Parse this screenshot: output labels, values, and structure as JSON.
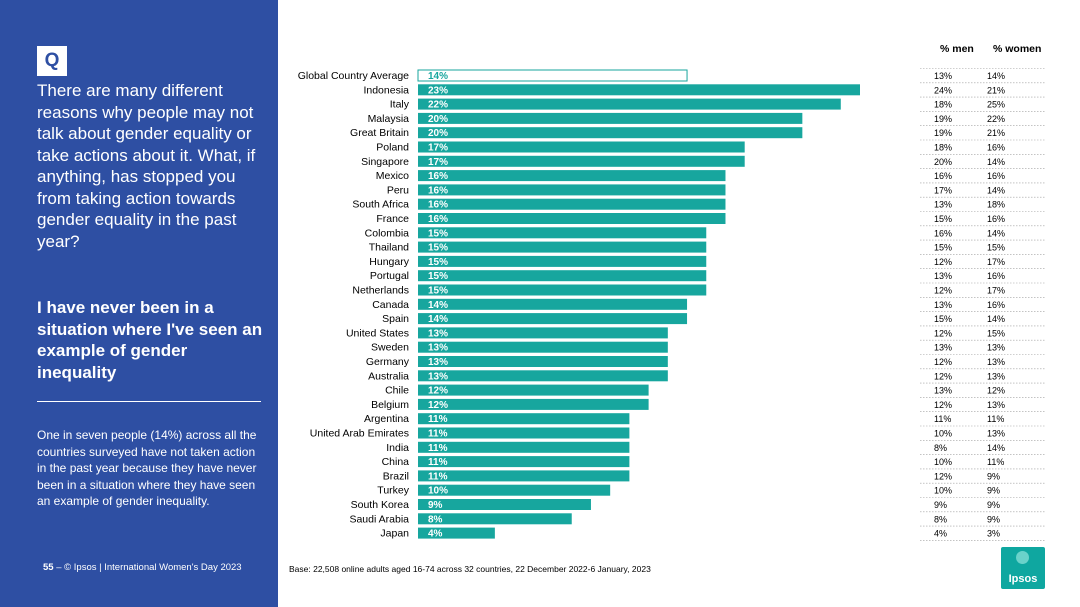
{
  "left_panel": {
    "q_badge": "Q",
    "question": "There are many different reasons why people may not talk about gender equality or take actions about it.  What, if anything, has stopped you from taking action towards gender equality in the past year?",
    "subtitle": "I have never been in a situation where I've seen an example of gender inequality",
    "summary": "One in seven people (14%) across all the countries surveyed have not taken action in the past year because they have never been in a situation where they have seen an example of gender inequality.",
    "page_number": "55",
    "footer": "–  © Ipsos | International Women's Day 2023"
  },
  "base_note": "Base: 22,508 online adults aged 16-74 across 32 countries, 22 December 2022-6 January, 2023",
  "logo_text": "Ipsos",
  "colors": {
    "panel": "#2e4fa3",
    "bar": "#17a69e",
    "white": "#ffffff"
  },
  "chart_data": {
    "type": "bar",
    "orientation": "horizontal",
    "title": "I have never been in a situation where I've seen an example of gender inequality",
    "value_unit": "%",
    "xlim": [
      0,
      25
    ],
    "categories": [
      "Global Country Average",
      "Indonesia",
      "Italy",
      "Malaysia",
      "Great Britain",
      "Poland",
      "Singapore",
      "Mexico",
      "Peru",
      "South Africa",
      "France",
      "Colombia",
      "Thailand",
      "Hungary",
      "Portugal",
      "Netherlands",
      "Canada",
      "Spain",
      "United States",
      "Sweden",
      "Germany",
      "Australia",
      "Chile",
      "Belgium",
      "Argentina",
      "United Arab Emirates",
      "India",
      "China",
      "Brazil",
      "Turkey",
      "South Korea",
      "Saudi Arabia",
      "Japan"
    ],
    "values": [
      14,
      23,
      22,
      20,
      20,
      17,
      17,
      16,
      16,
      16,
      16,
      15,
      15,
      15,
      15,
      15,
      14,
      14,
      13,
      13,
      13,
      13,
      12,
      12,
      11,
      11,
      11,
      11,
      11,
      10,
      9,
      8,
      4
    ],
    "highlight_index": 0,
    "table": {
      "headers": [
        "% men",
        "% women"
      ],
      "men": [
        13,
        24,
        18,
        19,
        19,
        18,
        20,
        16,
        17,
        13,
        15,
        16,
        15,
        12,
        13,
        12,
        13,
        15,
        12,
        13,
        12,
        12,
        13,
        12,
        11,
        10,
        8,
        10,
        12,
        10,
        9,
        8,
        4
      ],
      "women": [
        14,
        21,
        25,
        22,
        21,
        16,
        14,
        16,
        14,
        18,
        16,
        14,
        15,
        17,
        16,
        17,
        16,
        14,
        15,
        13,
        13,
        13,
        12,
        13,
        11,
        13,
        14,
        11,
        9,
        9,
        9,
        9,
        3
      ]
    }
  }
}
